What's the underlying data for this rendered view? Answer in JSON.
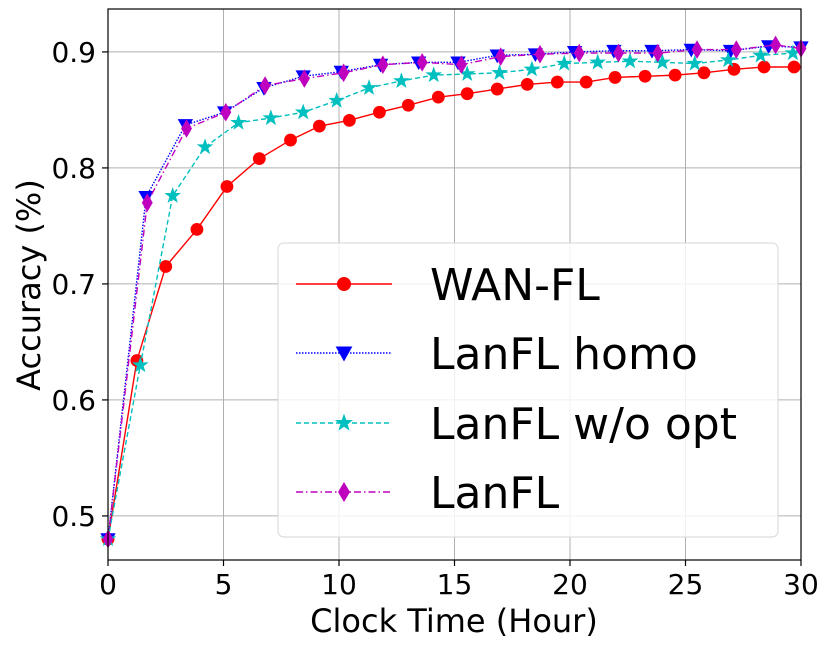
{
  "chart_data": {
    "type": "line",
    "xlabel": "Clock Time (Hour)",
    "ylabel": "Accuracy (%)",
    "xlim": [
      0,
      30
    ],
    "ylim": [
      0.462,
      0.937
    ],
    "xticks": [
      0,
      5,
      10,
      15,
      20,
      25,
      30
    ],
    "yticks": [
      0.5,
      0.6,
      0.7,
      0.8,
      0.9
    ],
    "grid": true,
    "legend_position": "lower-right",
    "series": [
      {
        "name": "WAN-FL",
        "color": "#ff0000",
        "line_style": "solid",
        "marker": "circle",
        "x": [
          0,
          1.25,
          2.5,
          3.85,
          5.15,
          6.55,
          7.9,
          9.15,
          10.45,
          11.75,
          13.0,
          14.3,
          15.55,
          16.85,
          18.15,
          19.45,
          20.7,
          21.95,
          23.25,
          24.55,
          25.8,
          27.1,
          28.4,
          29.7
        ],
        "values": [
          0.48,
          0.634,
          0.715,
          0.747,
          0.784,
          0.808,
          0.824,
          0.836,
          0.841,
          0.848,
          0.854,
          0.861,
          0.864,
          0.868,
          0.872,
          0.874,
          0.874,
          0.878,
          0.879,
          0.88,
          0.882,
          0.885,
          0.887,
          0.887
        ]
      },
      {
        "name": "LanFL homo",
        "color": "#0000ff",
        "line_style": "dotted",
        "marker": "triangle-down",
        "x": [
          0,
          1.65,
          3.35,
          5.05,
          6.75,
          8.45,
          10.1,
          11.8,
          13.45,
          15.15,
          16.85,
          18.5,
          20.2,
          21.9,
          23.55,
          25.25,
          26.95,
          28.6,
          30.0
        ],
        "values": [
          0.48,
          0.775,
          0.837,
          0.848,
          0.869,
          0.879,
          0.883,
          0.889,
          0.891,
          0.891,
          0.897,
          0.898,
          0.9,
          0.901,
          0.901,
          0.902,
          0.901,
          0.905,
          0.904
        ]
      },
      {
        "name": "LanFL w/o opt",
        "color": "#00bfbf",
        "line_style": "dashed",
        "marker": "star",
        "x": [
          0,
          1.4,
          2.8,
          4.2,
          5.65,
          7.05,
          8.45,
          9.9,
          11.3,
          12.7,
          14.1,
          15.55,
          16.95,
          18.35,
          19.75,
          21.2,
          22.6,
          24.0,
          25.4,
          26.85,
          28.25,
          29.65
        ],
        "values": [
          0.48,
          0.63,
          0.776,
          0.818,
          0.839,
          0.843,
          0.848,
          0.858,
          0.869,
          0.875,
          0.88,
          0.881,
          0.882,
          0.885,
          0.89,
          0.891,
          0.892,
          0.891,
          0.89,
          0.893,
          0.897,
          0.899
        ]
      },
      {
        "name": "LanFL",
        "color": "#bf00bf",
        "line_style": "dashdot",
        "marker": "diamond",
        "x": [
          0,
          1.7,
          3.4,
          5.1,
          6.8,
          8.5,
          10.2,
          11.9,
          13.6,
          15.3,
          17.0,
          18.7,
          20.4,
          22.1,
          23.8,
          25.5,
          27.2,
          28.9,
          30.0
        ],
        "values": [
          0.48,
          0.77,
          0.834,
          0.848,
          0.871,
          0.877,
          0.882,
          0.889,
          0.891,
          0.889,
          0.896,
          0.898,
          0.899,
          0.899,
          0.899,
          0.902,
          0.902,
          0.906,
          0.903
        ]
      }
    ]
  }
}
